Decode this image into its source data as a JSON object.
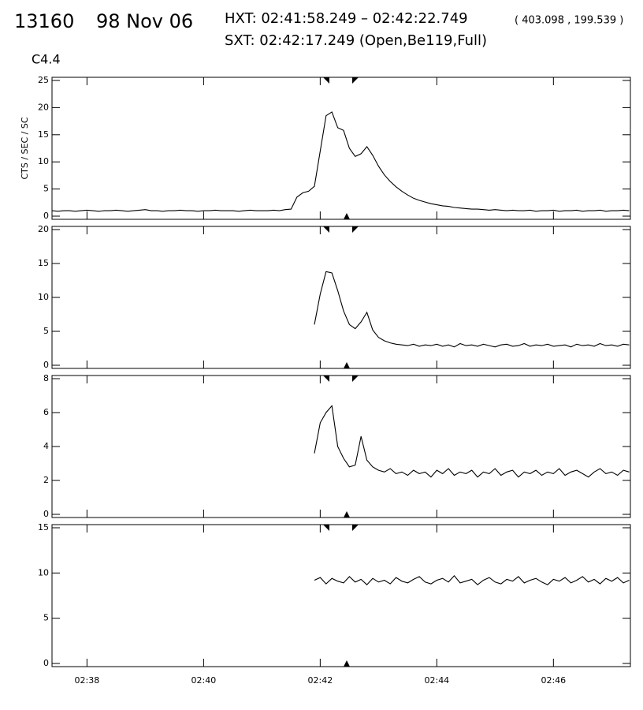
{
  "header": {
    "number": "13160",
    "date": "98 Nov 06",
    "hxt": "HXT: 02:41:58.249 – 02:42:22.749",
    "coords": "( 403.098 , 199.539 )",
    "sxt": "SXT: 02:42:17.249 (Open,Be119,Full)",
    "class": "C4.4"
  },
  "chart_data": [
    {
      "type": "line",
      "ylabel": "CTS / SEC / SC",
      "color": "#000000",
      "xlim": [
        37.4,
        47.32
      ],
      "ylim": [
        0,
        25
      ],
      "yticks": [
        0,
        5,
        10,
        15,
        20,
        25
      ],
      "x": [
        37.4,
        37.5,
        37.6,
        37.7,
        37.8,
        37.9,
        38.0,
        38.1,
        38.2,
        38.3,
        38.4,
        38.5,
        38.6,
        38.7,
        38.8,
        38.9,
        39.0,
        39.1,
        39.2,
        39.3,
        39.4,
        39.5,
        39.6,
        39.7,
        39.8,
        39.9,
        40.0,
        40.1,
        40.2,
        40.3,
        40.4,
        40.5,
        40.6,
        40.7,
        40.8,
        40.9,
        41.0,
        41.1,
        41.2,
        41.3,
        41.4,
        41.5,
        41.6,
        41.7,
        41.8,
        41.9,
        42.0,
        42.1,
        42.2,
        42.3,
        42.4,
        42.5,
        42.6,
        42.7,
        42.8,
        42.9,
        43.0,
        43.1,
        43.2,
        43.3,
        43.4,
        43.5,
        43.6,
        43.7,
        43.8,
        43.9,
        44.0,
        44.1,
        44.2,
        44.3,
        44.4,
        44.5,
        44.6,
        44.7,
        44.8,
        44.9,
        45.0,
        45.1,
        45.2,
        45.3,
        45.4,
        45.5,
        45.6,
        45.7,
        45.8,
        45.9,
        46.0,
        46.1,
        46.2,
        46.3,
        46.4,
        46.5,
        46.6,
        46.7,
        46.8,
        46.9,
        47.0,
        47.1,
        47.2,
        47.3
      ],
      "values": [
        1.0,
        0.9,
        1.0,
        1.0,
        0.9,
        1.0,
        1.1,
        1.0,
        0.9,
        1.0,
        1.0,
        1.1,
        1.0,
        0.9,
        1.0,
        1.1,
        1.2,
        1.0,
        1.0,
        0.9,
        1.0,
        1.0,
        1.1,
        1.0,
        1.0,
        0.9,
        1.0,
        1.0,
        1.1,
        1.0,
        1.0,
        1.0,
        0.9,
        1.0,
        1.1,
        1.0,
        1.0,
        1.0,
        1.1,
        1.0,
        1.2,
        1.3,
        3.5,
        4.3,
        4.6,
        5.5,
        12,
        18.5,
        19.2,
        16.3,
        15.8,
        12.5,
        11,
        11.5,
        12.8,
        11.2,
        9.2,
        7.6,
        6.4,
        5.4,
        4.6,
        3.9,
        3.3,
        2.9,
        2.6,
        2.3,
        2.1,
        1.9,
        1.8,
        1.6,
        1.5,
        1.4,
        1.3,
        1.3,
        1.2,
        1.1,
        1.2,
        1.1,
        1.0,
        1.1,
        1.0,
        1.0,
        1.1,
        0.9,
        1.0,
        1.0,
        1.1,
        0.9,
        1.0,
        1.0,
        1.1,
        0.9,
        1.0,
        1.0,
        1.1,
        0.9,
        1.0,
        1.0,
        1.1,
        1.0
      ]
    },
    {
      "type": "line",
      "color": "#000000",
      "xlim": [
        37.4,
        47.32
      ],
      "ylim": [
        0,
        20
      ],
      "yticks": [
        0,
        5,
        10,
        15,
        20
      ],
      "x": [
        41.9,
        42.0,
        42.1,
        42.2,
        42.3,
        42.4,
        42.5,
        42.6,
        42.7,
        42.8,
        42.9,
        43.0,
        43.1,
        43.2,
        43.3,
        43.4,
        43.5,
        43.6,
        43.7,
        43.8,
        43.9,
        44.0,
        44.1,
        44.2,
        44.3,
        44.4,
        44.5,
        44.6,
        44.7,
        44.8,
        44.9,
        45.0,
        45.1,
        45.2,
        45.3,
        45.4,
        45.5,
        45.6,
        45.7,
        45.8,
        45.9,
        46.0,
        46.1,
        46.2,
        46.3,
        46.4,
        46.5,
        46.6,
        46.7,
        46.8,
        46.9,
        47.0,
        47.1,
        47.2,
        47.3
      ],
      "values": [
        6,
        10.5,
        13.8,
        13.6,
        11,
        8,
        6,
        5.4,
        6.4,
        7.8,
        5.2,
        4.1,
        3.6,
        3.3,
        3.1,
        3.0,
        2.9,
        3.1,
        2.8,
        3.0,
        2.9,
        3.1,
        2.8,
        3.0,
        2.7,
        3.2,
        2.9,
        3.0,
        2.8,
        3.1,
        2.9,
        2.7,
        3.0,
        3.1,
        2.8,
        2.9,
        3.2,
        2.8,
        3.0,
        2.9,
        3.1,
        2.8,
        2.9,
        3.0,
        2.7,
        3.1,
        2.9,
        3.0,
        2.8,
        3.2,
        2.9,
        3.0,
        2.8,
        3.1,
        3.0
      ]
    },
    {
      "type": "line",
      "color": "#000000",
      "xlim": [
        37.4,
        47.32
      ],
      "ylim": [
        0,
        8
      ],
      "yticks": [
        0,
        2,
        4,
        6,
        8
      ],
      "x": [
        41.9,
        42.0,
        42.1,
        42.2,
        42.3,
        42.4,
        42.5,
        42.6,
        42.7,
        42.8,
        42.9,
        43.0,
        43.1,
        43.2,
        43.3,
        43.4,
        43.5,
        43.6,
        43.7,
        43.8,
        43.9,
        44.0,
        44.1,
        44.2,
        44.3,
        44.4,
        44.5,
        44.6,
        44.7,
        44.8,
        44.9,
        45.0,
        45.1,
        45.2,
        45.3,
        45.4,
        45.5,
        45.6,
        45.7,
        45.8,
        45.9,
        46.0,
        46.1,
        46.2,
        46.3,
        46.4,
        46.5,
        46.6,
        46.7,
        46.8,
        46.9,
        47.0,
        47.1,
        47.2,
        47.3
      ],
      "values": [
        3.6,
        5.4,
        6.0,
        6.4,
        4.0,
        3.3,
        2.8,
        2.9,
        4.6,
        3.2,
        2.8,
        2.6,
        2.5,
        2.7,
        2.4,
        2.5,
        2.3,
        2.6,
        2.4,
        2.5,
        2.2,
        2.6,
        2.4,
        2.7,
        2.3,
        2.5,
        2.4,
        2.6,
        2.2,
        2.5,
        2.4,
        2.7,
        2.3,
        2.5,
        2.6,
        2.2,
        2.5,
        2.4,
        2.6,
        2.3,
        2.5,
        2.4,
        2.7,
        2.3,
        2.5,
        2.6,
        2.4,
        2.2,
        2.5,
        2.7,
        2.4,
        2.5,
        2.3,
        2.6,
        2.5
      ]
    },
    {
      "type": "line",
      "color": "#000000",
      "xlim": [
        37.4,
        47.32
      ],
      "ylim": [
        0,
        15
      ],
      "yticks": [
        0,
        5,
        10,
        15
      ],
      "xticks": [
        {
          "value": 38,
          "label": "02:38"
        },
        {
          "value": 40,
          "label": "02:40"
        },
        {
          "value": 42,
          "label": "02:42"
        },
        {
          "value": 44,
          "label": "02:44"
        },
        {
          "value": 46,
          "label": "02:46"
        }
      ],
      "x": [
        41.9,
        42.0,
        42.1,
        42.2,
        42.3,
        42.4,
        42.5,
        42.6,
        42.7,
        42.8,
        42.9,
        43.0,
        43.1,
        43.2,
        43.3,
        43.4,
        43.5,
        43.6,
        43.7,
        43.8,
        43.9,
        44.0,
        44.1,
        44.2,
        44.3,
        44.4,
        44.5,
        44.6,
        44.7,
        44.8,
        44.9,
        45.0,
        45.1,
        45.2,
        45.3,
        45.4,
        45.5,
        45.6,
        45.7,
        45.8,
        45.9,
        46.0,
        46.1,
        46.2,
        46.3,
        46.4,
        46.5,
        46.6,
        46.7,
        46.8,
        46.9,
        47.0,
        47.1,
        47.2,
        47.3
      ],
      "values": [
        9.2,
        9.5,
        8.8,
        9.4,
        9.1,
        8.9,
        9.6,
        9.0,
        9.3,
        8.7,
        9.4,
        9.0,
        9.2,
        8.8,
        9.5,
        9.1,
        8.9,
        9.3,
        9.6,
        9.0,
        8.8,
        9.2,
        9.4,
        9.0,
        9.7,
        8.9,
        9.1,
        9.3,
        8.7,
        9.2,
        9.5,
        9.0,
        8.8,
        9.3,
        9.1,
        9.6,
        8.9,
        9.2,
        9.4,
        9.0,
        8.7,
        9.3,
        9.1,
        9.5,
        8.9,
        9.2,
        9.6,
        9.0,
        9.3,
        8.8,
        9.4,
        9.1,
        9.5,
        8.9,
        9.2
      ]
    }
  ]
}
